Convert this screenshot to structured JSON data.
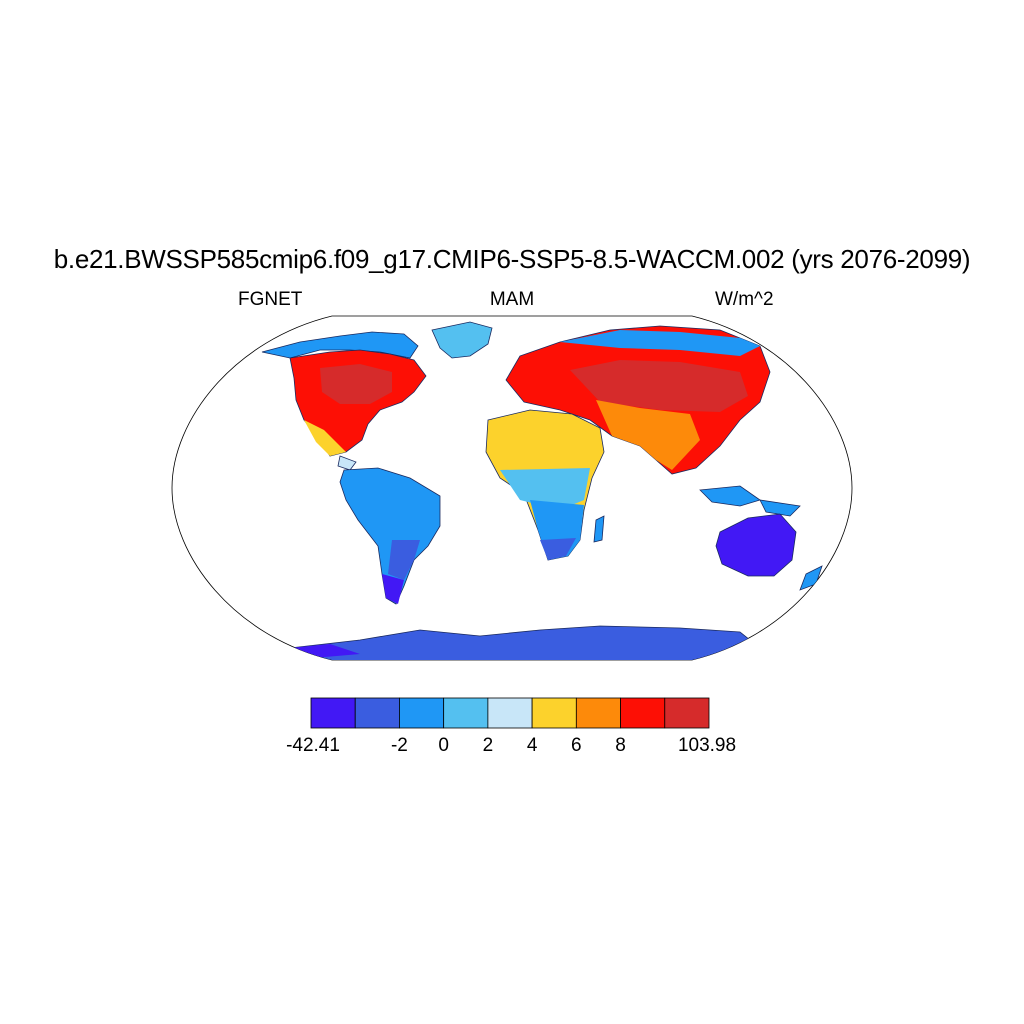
{
  "title": "b.e21.BWSSP585cmip6.f09_g17.CMIP6-SSP5-8.5-WACCM.002 (yrs 2076-2099)",
  "subtitles": {
    "left": "FGNET",
    "center": "MAM",
    "right": "W/m^2"
  },
  "colorbar": {
    "colors": [
      "#4218f5",
      "#3a5de0",
      "#1f97f5",
      "#54c0f0",
      "#c8e6f8",
      "#fcd22c",
      "#fd8a0a",
      "#fd0f05",
      "#d62b2b"
    ],
    "labels": [
      "-42.41",
      "-2",
      "0",
      "2",
      "4",
      "6",
      "8",
      "103.98"
    ]
  },
  "regions": [
    {
      "name": "North America",
      "color_index": 7
    },
    {
      "name": "Eurasia",
      "color_index": 7
    },
    {
      "name": "Sahara / Arabia",
      "color_index": 5
    },
    {
      "name": "South America",
      "color_index": 2
    },
    {
      "name": "Southern Africa",
      "color_index": 2
    },
    {
      "name": "Australia",
      "color_index": 0
    },
    {
      "name": "Antarctica",
      "color_index": 1
    },
    {
      "name": "Greenland",
      "color_index": 2
    }
  ]
}
